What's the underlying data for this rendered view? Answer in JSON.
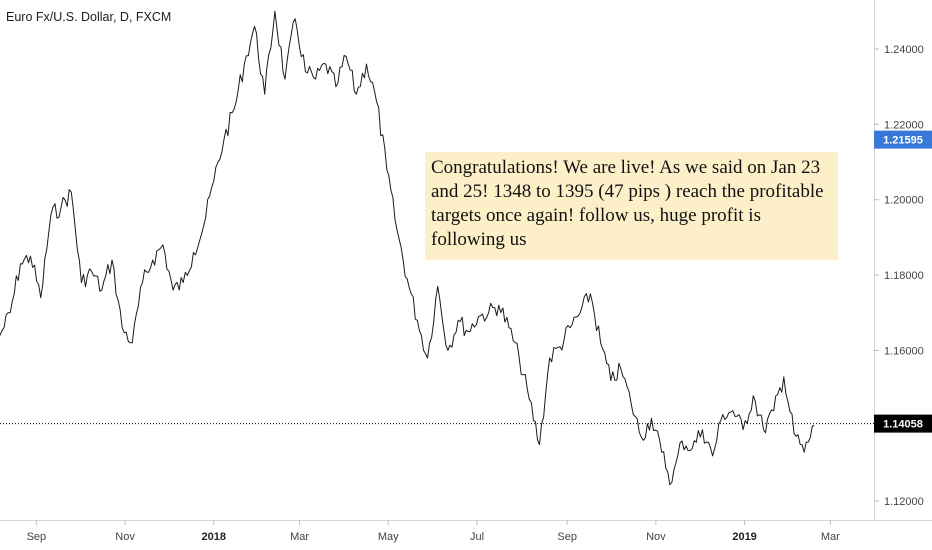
{
  "chart_data": {
    "type": "line",
    "title": "Euro Fx/U.S. Dollar, D, FXCM",
    "xlabel": "",
    "ylabel": "",
    "x_ticks": [
      {
        "label": "Sep",
        "bold": false
      },
      {
        "label": "Nov",
        "bold": false
      },
      {
        "label": "2018",
        "bold": true
      },
      {
        "label": "Mar",
        "bold": false
      },
      {
        "label": "May",
        "bold": false
      },
      {
        "label": "Jul",
        "bold": false
      },
      {
        "label": "Sep",
        "bold": false
      },
      {
        "label": "Nov",
        "bold": false
      },
      {
        "label": "2019",
        "bold": true
      },
      {
        "label": "Mar",
        "bold": false
      }
    ],
    "y_ticks": [
      "1.24000",
      "1.22000",
      "1.20000",
      "1.18000",
      "1.16000",
      "1.12000"
    ],
    "ylim": [
      1.115,
      1.253
    ],
    "xlim": [
      "2017-08-07",
      "2019-03-31"
    ],
    "series": [
      {
        "values": [
          [
            "2017-08-07",
            1.164
          ],
          [
            "2017-08-14",
            1.17
          ],
          [
            "2017-08-21",
            1.183
          ],
          [
            "2017-08-28",
            1.185
          ],
          [
            "2017-09-04",
            1.174
          ],
          [
            "2017-09-11",
            1.196
          ],
          [
            "2017-09-18",
            1.198
          ],
          [
            "2017-09-25",
            1.202
          ],
          [
            "2017-10-02",
            1.178
          ],
          [
            "2017-10-09",
            1.181
          ],
          [
            "2017-10-16",
            1.176
          ],
          [
            "2017-10-23",
            1.184
          ],
          [
            "2017-10-30",
            1.166
          ],
          [
            "2017-11-06",
            1.162
          ],
          [
            "2017-11-13",
            1.178
          ],
          [
            "2017-11-20",
            1.184
          ],
          [
            "2017-11-27",
            1.188
          ],
          [
            "2017-12-04",
            1.176
          ],
          [
            "2017-12-11",
            1.178
          ],
          [
            "2017-12-18",
            1.186
          ],
          [
            "2017-12-25",
            1.193
          ],
          [
            "2018-01-01",
            1.205
          ],
          [
            "2018-01-08",
            1.216
          ],
          [
            "2018-01-15",
            1.224
          ],
          [
            "2018-01-22",
            1.236
          ],
          [
            "2018-01-29",
            1.246
          ],
          [
            "2018-02-05",
            1.228
          ],
          [
            "2018-02-12",
            1.25
          ],
          [
            "2018-02-19",
            1.232
          ],
          [
            "2018-02-26",
            1.248
          ],
          [
            "2018-03-05",
            1.234
          ],
          [
            "2018-03-12",
            1.232
          ],
          [
            "2018-03-19",
            1.236
          ],
          [
            "2018-03-26",
            1.23
          ],
          [
            "2018-04-02",
            1.238
          ],
          [
            "2018-04-09",
            1.228
          ],
          [
            "2018-04-16",
            1.236
          ],
          [
            "2018-04-23",
            1.226
          ],
          [
            "2018-04-30",
            1.208
          ],
          [
            "2018-05-07",
            1.192
          ],
          [
            "2018-05-14",
            1.179
          ],
          [
            "2018-05-21",
            1.168
          ],
          [
            "2018-05-28",
            1.158
          ],
          [
            "2018-06-04",
            1.177
          ],
          [
            "2018-06-11",
            1.16
          ],
          [
            "2018-06-18",
            1.168
          ],
          [
            "2018-06-25",
            1.165
          ],
          [
            "2018-07-02",
            1.169
          ],
          [
            "2018-07-09",
            1.17
          ],
          [
            "2018-07-16",
            1.172
          ],
          [
            "2018-07-23",
            1.166
          ],
          [
            "2018-07-30",
            1.158
          ],
          [
            "2018-08-06",
            1.147
          ],
          [
            "2018-08-13",
            1.135
          ],
          [
            "2018-08-20",
            1.158
          ],
          [
            "2018-08-27",
            1.161
          ],
          [
            "2018-09-03",
            1.166
          ],
          [
            "2018-09-10",
            1.17
          ],
          [
            "2018-09-17",
            1.175
          ],
          [
            "2018-09-24",
            1.162
          ],
          [
            "2018-10-01",
            1.152
          ],
          [
            "2018-10-08",
            1.155
          ],
          [
            "2018-10-15",
            1.146
          ],
          [
            "2018-10-22",
            1.137
          ],
          [
            "2018-10-29",
            1.142
          ],
          [
            "2018-11-05",
            1.133
          ],
          [
            "2018-11-12",
            1.125
          ],
          [
            "2018-11-19",
            1.136
          ],
          [
            "2018-11-26",
            1.134
          ],
          [
            "2018-12-03",
            1.139
          ],
          [
            "2018-12-10",
            1.132
          ],
          [
            "2018-12-17",
            1.143
          ],
          [
            "2018-12-24",
            1.144
          ],
          [
            "2018-12-31",
            1.139
          ],
          [
            "2019-01-07",
            1.148
          ],
          [
            "2019-01-14",
            1.139
          ],
          [
            "2019-01-21",
            1.144
          ],
          [
            "2019-01-28",
            1.153
          ],
          [
            "2019-02-04",
            1.138
          ],
          [
            "2019-02-11",
            1.133
          ],
          [
            "2019-02-18",
            1.14
          ]
        ]
      }
    ],
    "price_line": {
      "value": "1.14058",
      "color": "#000000"
    },
    "current_marker": {
      "value": "1.21595",
      "color": "#3a78d8"
    },
    "annotation": {
      "text": "Congratulations! We are live! As we said on Jan 23 and 25! 1348  to 1395  (47 pips ) reach the profitable targets once again! follow us, huge profit is following us",
      "background": "#fdf0c9"
    },
    "grid": false,
    "legend": "none"
  }
}
